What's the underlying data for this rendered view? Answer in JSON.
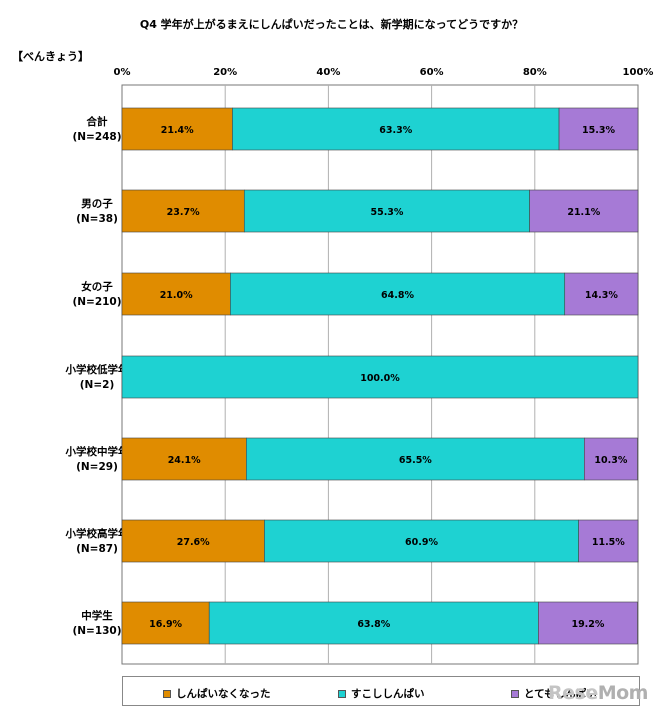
{
  "title": "Q4 学年が上がるまえにしんぱいだったことは、新学期になってどうですか？",
  "subtitle": "【べんきょう】",
  "watermark": {
    "part1": "Rese",
    "part2": "Mom"
  },
  "colors": {
    "shinpai_nakunatta": "#e08c00",
    "sukoshi_shinpai": "#1ed2d2",
    "totemo_shinpai": "#a67ad6"
  },
  "chart_data": {
    "type": "bar",
    "orientation": "horizontal",
    "stacked": "100%",
    "x_ticks": [
      "0%",
      "20%",
      "40%",
      "60%",
      "80%",
      "100%"
    ],
    "xlim": [
      0,
      100
    ],
    "grid": true,
    "legend_position": "bottom",
    "categories": [
      {
        "label": "合計",
        "n": "(N=248)"
      },
      {
        "label": "男の子",
        "n": "(N=38)"
      },
      {
        "label": "女の子",
        "n": "(N=210)"
      },
      {
        "label": "小学校低学年",
        "n": "(N=2)"
      },
      {
        "label": "小学校中学年",
        "n": "(N=29)"
      },
      {
        "label": "小学校高学年",
        "n": "(N=87)"
      },
      {
        "label": "中学生",
        "n": "(N=130)"
      }
    ],
    "series": [
      {
        "name": "しんぱいなくなった",
        "color": "#e08c00",
        "values": [
          21.4,
          23.7,
          21.0,
          null,
          24.1,
          27.6,
          16.9
        ],
        "labels": [
          "21.4%",
          "23.7%",
          "21.0%",
          "",
          "24.1%",
          "27.6%",
          "16.9%"
        ]
      },
      {
        "name": "すこししんぱい",
        "color": "#1ed2d2",
        "values": [
          63.3,
          55.3,
          64.8,
          100.0,
          65.5,
          60.9,
          63.8
        ],
        "labels": [
          "63.3%",
          "55.3%",
          "64.8%",
          "100.0%",
          "65.5%",
          "60.9%",
          "63.8%"
        ]
      },
      {
        "name": "とてもしんぱい",
        "color": "#a67ad6",
        "values": [
          15.3,
          21.1,
          14.3,
          null,
          10.3,
          11.5,
          19.2
        ],
        "labels": [
          "15.3%",
          "21.1%",
          "14.3%",
          "",
          "10.3%",
          "11.5%",
          "19.2%"
        ]
      }
    ]
  }
}
